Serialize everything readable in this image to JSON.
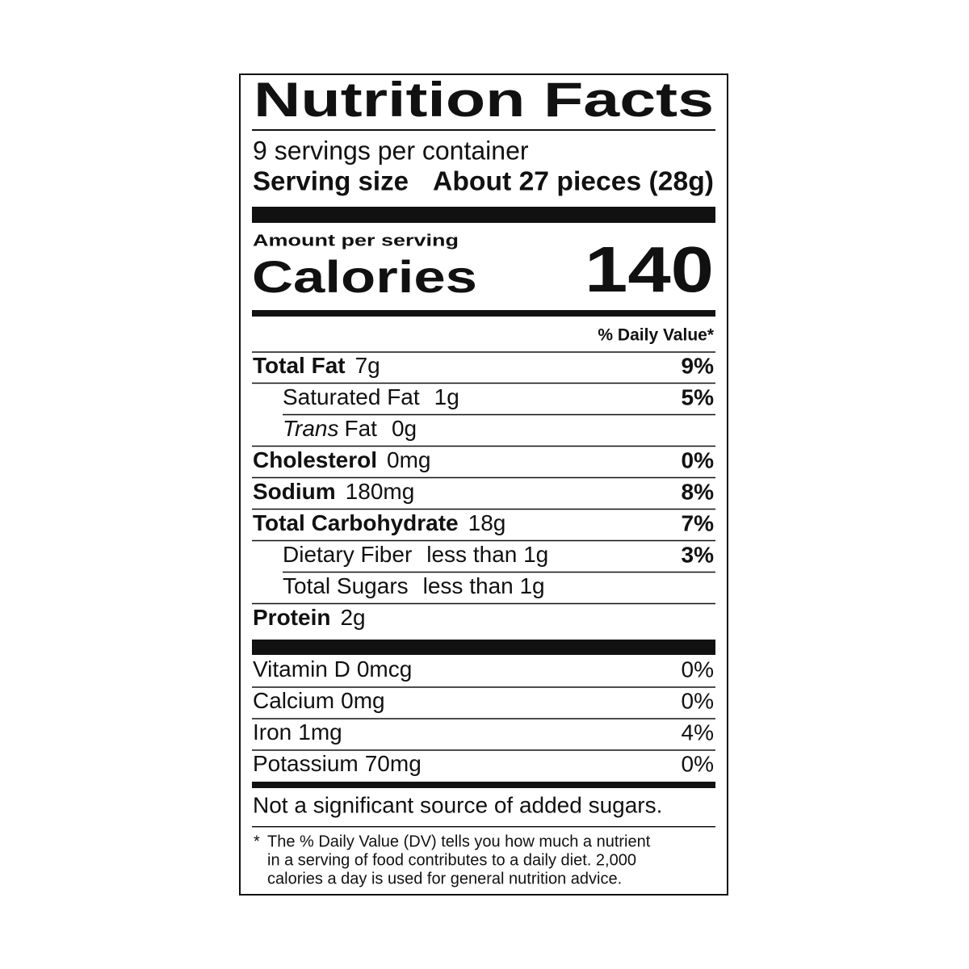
{
  "header": {
    "title": "Nutrition Facts",
    "servings": "9 servings per container",
    "serving_size_label": "Serving size",
    "serving_size_value": "About 27 pieces (28g)"
  },
  "calories": {
    "label": "Amount per serving",
    "name": "Calories",
    "value": 140
  },
  "daily_value_header": "% Daily Value*",
  "nutrients": [
    {
      "name": "Total Fat",
      "amount": "7g",
      "dv": "9%",
      "bold": true,
      "indent": false
    },
    {
      "name": "Saturated Fat",
      "amount": "1g",
      "dv": "5%",
      "bold": false,
      "indent": true
    },
    {
      "name_italic": "Trans",
      "name": "Fat",
      "amount": "0g",
      "bold": false,
      "indent": true
    },
    {
      "name": "Cholesterol",
      "amount": "0mg",
      "dv": "0%",
      "bold": true,
      "indent": false
    },
    {
      "name": "Sodium",
      "amount": "180mg",
      "dv": "8%",
      "bold": true,
      "indent": false
    },
    {
      "name": "Total Carbohydrate",
      "amount": "18g",
      "dv": "7%",
      "bold": true,
      "indent": false
    },
    {
      "name": "Dietary Fiber",
      "amount": "less than 1g",
      "dv": "3%",
      "bold": false,
      "indent": true
    },
    {
      "name": "Total Sugars",
      "amount": "less than 1g",
      "bold": false,
      "indent": true
    },
    {
      "name": "Protein",
      "amount": "2g",
      "bold": true,
      "indent": false
    }
  ],
  "vitamins": [
    {
      "name": "Vitamin D",
      "amount": "0mcg",
      "dv": "0%"
    },
    {
      "name": "Calcium",
      "amount": "0mg",
      "dv": "0%"
    },
    {
      "name": "Iron",
      "amount": "1mg",
      "dv": "4%"
    },
    {
      "name": "Potassium",
      "amount": "70mg",
      "dv": "0%"
    }
  ],
  "added_sugars_note": "Not a significant source of added sugars.",
  "footnote": {
    "marker": "*",
    "lines": [
      "The % Daily Value (DV) tells you how much a nutrient",
      "in a serving of food contributes to a daily diet. 2,000",
      "calories a day is used for general nutrition advice."
    ]
  }
}
